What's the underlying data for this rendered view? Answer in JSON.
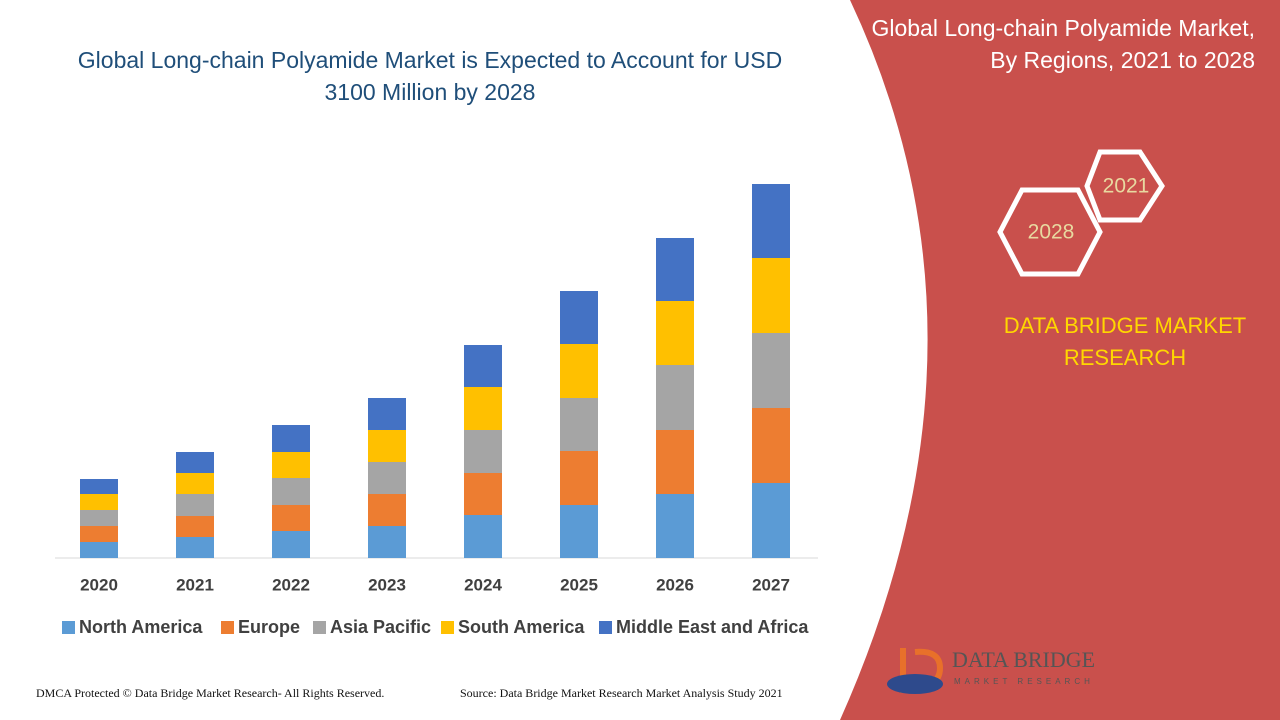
{
  "chart_data": {
    "type": "stacked_bar",
    "title": "Global Long-chain Polyamide Market is Expected to Account for USD 3100 Million by 2028",
    "categories": [
      "2020",
      "2021",
      "2022",
      "2023",
      "2024",
      "2025",
      "2026",
      "2027"
    ],
    "series": [
      {
        "name": "North America",
        "color": "#5b9bd5",
        "values": [
          16,
          21,
          27,
          32,
          43,
          53,
          64,
          75
        ]
      },
      {
        "name": "Europe",
        "color": "#ed7d31",
        "values": [
          16,
          21,
          26,
          32,
          42,
          54,
          64,
          75
        ]
      },
      {
        "name": "Asia Pacific",
        "color": "#a5a5a5",
        "values": [
          16,
          22,
          27,
          32,
          43,
          53,
          65,
          75
        ]
      },
      {
        "name": "South America",
        "color": "#ffc000",
        "values": [
          16,
          21,
          26,
          32,
          43,
          54,
          64,
          75
        ]
      },
      {
        "name": "Middle East and Africa",
        "color": "#4472c4",
        "values": [
          15,
          21,
          27,
          32,
          42,
          53,
          63,
          74
        ]
      }
    ],
    "ylim": [
      0,
      400
    ]
  },
  "side_title": "Global Long-chain Polyamide Market, By Regions, 2021 to 2028",
  "hexagons": [
    "2021",
    "2028"
  ],
  "brand": "DATA BRIDGE MARKET RESEARCH",
  "logo": {
    "name": "DATA BRIDGE",
    "tagline": "MARKET RESEARCH"
  },
  "footer": {
    "copyright": "DMCA Protected © Data Bridge Market Research- All Rights Reserved.",
    "source": "Source: Data Bridge Market Research Market Analysis Study 2021"
  }
}
